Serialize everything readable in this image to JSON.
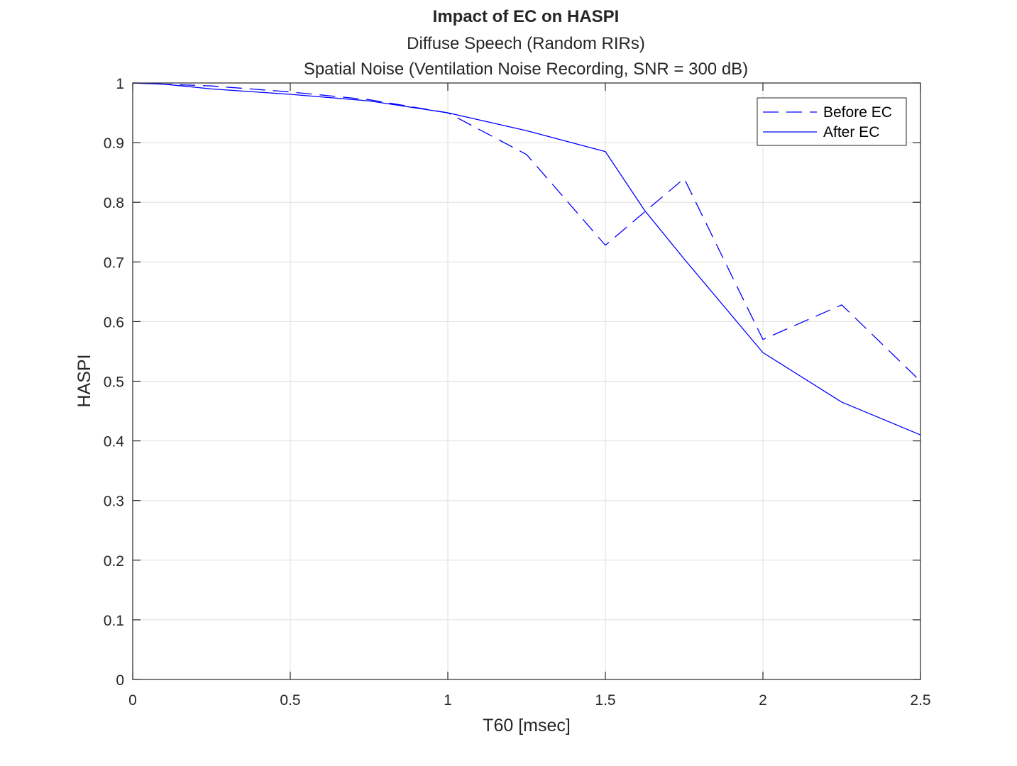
{
  "chart_data": {
    "type": "line",
    "title": "Impact of EC on HASPI",
    "subtitle": [
      "Diffuse Speech (Random RIRs)",
      "Spatial Noise (Ventilation Noise Recording, SNR = 300 dB)"
    ],
    "xlabel": "T60 [msec]",
    "ylabel": "HASPI",
    "xlim": [
      0,
      2.5
    ],
    "ylim": [
      0,
      1
    ],
    "xticks": [
      0,
      0.5,
      1,
      1.5,
      2,
      2.5
    ],
    "xtick_labels": [
      "0",
      "0.5",
      "1",
      "1.5",
      "2",
      "2.5"
    ],
    "yticks": [
      0,
      0.1,
      0.2,
      0.3,
      0.4,
      0.5,
      0.6,
      0.7,
      0.8,
      0.9,
      1
    ],
    "ytick_labels": [
      "0",
      "0.1",
      "0.2",
      "0.3",
      "0.4",
      "0.5",
      "0.6",
      "0.7",
      "0.8",
      "0.9",
      "1"
    ],
    "grid": true,
    "legend_position": "top-right",
    "series": [
      {
        "name": "Before EC",
        "style": "dashed",
        "color": "#0000ff",
        "x": [
          0,
          0.1,
          0.25,
          0.5,
          0.75,
          1.0,
          1.25,
          1.5,
          1.75,
          2.0,
          2.25,
          2.5
        ],
        "y": [
          1.0,
          0.998,
          0.995,
          0.985,
          0.972,
          0.95,
          0.88,
          0.728,
          0.84,
          0.57,
          0.628,
          0.5
        ]
      },
      {
        "name": "After EC",
        "style": "solid",
        "color": "#0000ff",
        "x": [
          0,
          0.1,
          0.25,
          0.5,
          0.75,
          1.0,
          1.25,
          1.5,
          1.625,
          1.75,
          2.0,
          2.25,
          2.5
        ],
        "y": [
          1.0,
          0.998,
          0.99,
          0.981,
          0.97,
          0.95,
          0.92,
          0.885,
          0.786,
          0.705,
          0.548,
          0.465,
          0.41
        ]
      }
    ]
  }
}
